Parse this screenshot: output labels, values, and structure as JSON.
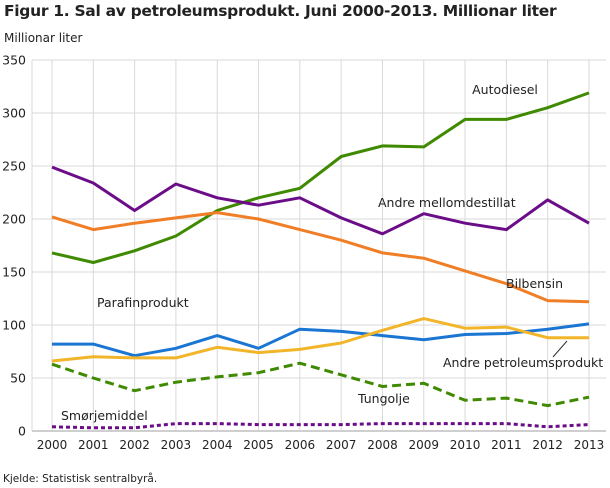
{
  "chart_data": {
    "type": "line",
    "title": "Figur 1. Sal av petroleumsprodukt. Juni 2000-2013. Millionar liter",
    "ylabel": "Millionar liter",
    "xlabel": "",
    "source": "Kjelde: Statistisk sentralbyrå.",
    "ylim": [
      0,
      350
    ],
    "yticks": [
      0,
      50,
      100,
      150,
      200,
      250,
      300,
      350
    ],
    "grid": true,
    "categories": [
      "2000",
      "2001",
      "2002",
      "2003",
      "2004",
      "2005",
      "2006",
      "2007",
      "2008",
      "2009",
      "2010",
      "2011",
      "2012",
      "2013"
    ],
    "series": [
      {
        "name": "Autodiesel",
        "color": "#3f8a00",
        "dash": "solid",
        "values": [
          168,
          159,
          170,
          184,
          208,
          220,
          229,
          259,
          269,
          268,
          294,
          294,
          305,
          319
        ]
      },
      {
        "name": "Andre mellomdestillat",
        "color": "#6b0d88",
        "dash": "solid",
        "values": [
          249,
          234,
          208,
          233,
          220,
          213,
          220,
          201,
          186,
          205,
          196,
          190,
          218,
          196
        ]
      },
      {
        "name": "Bilbensin",
        "color": "#f07e26",
        "dash": "solid",
        "values": [
          202,
          190,
          196,
          201,
          206,
          200,
          190,
          180,
          168,
          163,
          151,
          139,
          123,
          122
        ]
      },
      {
        "name": "Parafinprodukt",
        "color": "#1a76d2",
        "dash": "solid",
        "values": [
          82,
          82,
          71,
          78,
          90,
          78,
          96,
          94,
          90,
          86,
          91,
          92,
          96,
          101
        ]
      },
      {
        "name": "Andre petroleumsprodukt",
        "color": "#f2b52a",
        "dash": "solid",
        "values": [
          66,
          70,
          69,
          69,
          79,
          74,
          77,
          83,
          95,
          106,
          97,
          98,
          88,
          88
        ]
      },
      {
        "name": "Tungolje",
        "color": "#3f8a00",
        "dash": "dashed",
        "values": [
          63,
          50,
          38,
          46,
          51,
          55,
          64,
          53,
          42,
          45,
          29,
          31,
          24,
          32
        ]
      },
      {
        "name": "Smørjemiddel",
        "color": "#6b0d88",
        "dash": "dotted",
        "values": [
          4,
          3,
          3,
          7,
          7,
          6,
          6,
          6,
          7,
          7,
          7,
          7,
          4,
          6
        ]
      }
    ]
  }
}
